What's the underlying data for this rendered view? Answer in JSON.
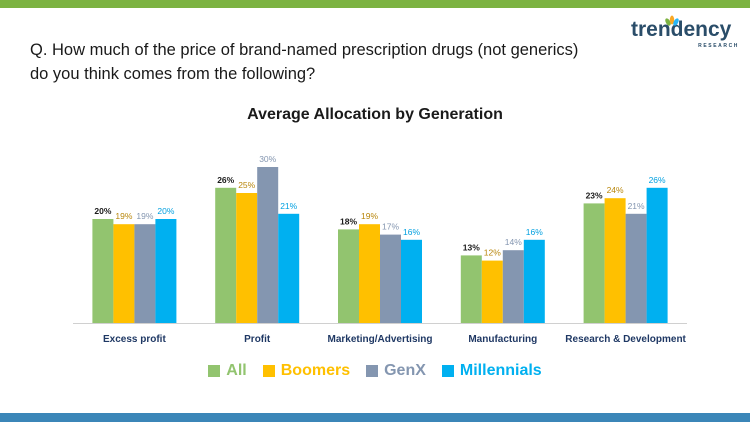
{
  "question": {
    "line1": "Q. How much of the price of brand-named prescription drugs (not generics)",
    "line2": "do you think comes from the following?"
  },
  "logo": {
    "word": "trendency",
    "sub": "RESEARCH",
    "colors": {
      "text": "#2a4d69",
      "leaf1": "#7cb342",
      "leaf2": "#f9a825",
      "leaf3": "#29b6f6"
    }
  },
  "chart_data": {
    "type": "bar",
    "title": "Average Allocation by Generation",
    "categories": [
      "Excess profit",
      "Profit",
      "Marketing/Advertising",
      "Manufacturing",
      "Research & Development"
    ],
    "series": [
      {
        "name": "All",
        "color": "#92c46f",
        "label_color": "#1a1a1a",
        "values": [
          20,
          26,
          18,
          13,
          23
        ]
      },
      {
        "name": "Boomers",
        "color": "#ffc000",
        "label_color": "#b8860b",
        "values": [
          19,
          25,
          19,
          12,
          24
        ]
      },
      {
        "name": "GenX",
        "color": "#8496b0",
        "label_color": "#8496b0",
        "values": [
          19,
          30,
          17,
          14,
          21
        ]
      },
      {
        "name": "Millennials",
        "color": "#00b0f0",
        "label_color": "#00a0e0",
        "values": [
          20,
          21,
          16,
          16,
          26
        ]
      }
    ],
    "value_suffix": "%",
    "ylim": [
      0,
      30
    ],
    "grid": false,
    "legend": "bottom",
    "xlabel": "",
    "ylabel": ""
  },
  "colors": {
    "top_bar": "#7cb342",
    "bottom_bar": "#3b86b8",
    "axis": "#d0d0d0",
    "category_label": "#1f3864"
  }
}
